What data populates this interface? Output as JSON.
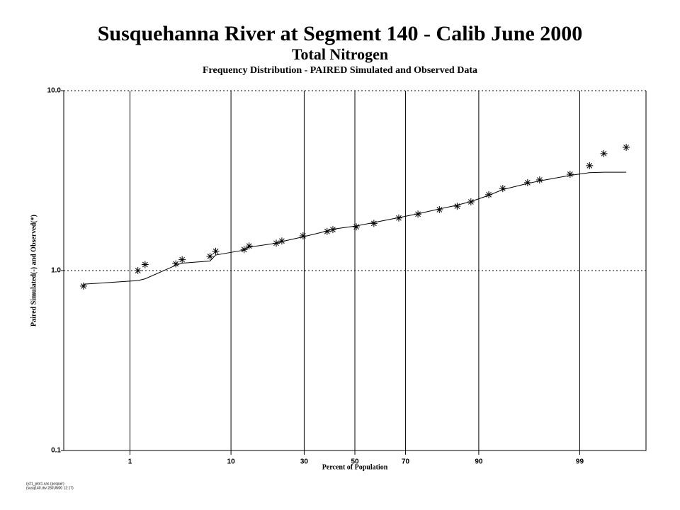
{
  "chart_data": {
    "type": "line",
    "title": "Susquehanna River at Segment 140 - Calib June 2000",
    "subtitle": "Total Nitrogen",
    "caption": "Frequency Distribution - PAIRED Simulated and Observed Data",
    "x_label": "Percent of Population",
    "y_label": "Paired Simulated(-) and Observed(*)",
    "footer": [
      "(y21_plot1.sas (pospair)",
      "(susq140.drv 28JUN00 12:17)"
    ],
    "xscale": "probability",
    "yscale": "log",
    "grid": true,
    "color": "#000000",
    "xlim": [
      0.13,
      99.87
    ],
    "xticks": [
      1,
      10,
      30,
      50,
      70,
      90,
      99
    ],
    "ylim": [
      0.1,
      10
    ],
    "yticks": [
      0.1,
      {
        "value": 1,
        "label": "1.0"
      },
      {
        "value": 10,
        "label": "10.0"
      }
    ],
    "x": [
      0.25,
      1.24,
      1.5,
      3.2,
      3.7,
      6.7,
      7.5,
      12.6,
      13.7,
      20.8,
      22.5,
      29.6,
      38.7,
      41,
      50.6,
      57.8,
      67.5,
      74.3,
      80.9,
      85.5,
      88.5,
      91.7,
      93.7,
      96.3,
      97.2,
      98.7,
      99.24,
      99.5,
      99.75
    ],
    "series": [
      {
        "marker": "line",
        "values": [
          0.84,
          0.88,
          0.9,
          1.07,
          1.1,
          1.13,
          1.22,
          1.3,
          1.35,
          1.42,
          1.45,
          1.54,
          1.66,
          1.7,
          1.77,
          1.85,
          1.97,
          2.07,
          2.2,
          2.31,
          2.42,
          2.62,
          2.82,
          3.05,
          3.15,
          3.38,
          3.5,
          3.52,
          3.52
        ]
      },
      {
        "marker": "star",
        "values": [
          0.82,
          1.0,
          1.08,
          1.09,
          1.15,
          1.2,
          1.28,
          1.31,
          1.37,
          1.42,
          1.46,
          1.56,
          1.65,
          1.69,
          1.75,
          1.83,
          1.96,
          2.06,
          2.18,
          2.28,
          2.41,
          2.64,
          2.86,
          3.08,
          3.19,
          3.43,
          3.83,
          4.47,
          4.84
        ]
      }
    ]
  }
}
